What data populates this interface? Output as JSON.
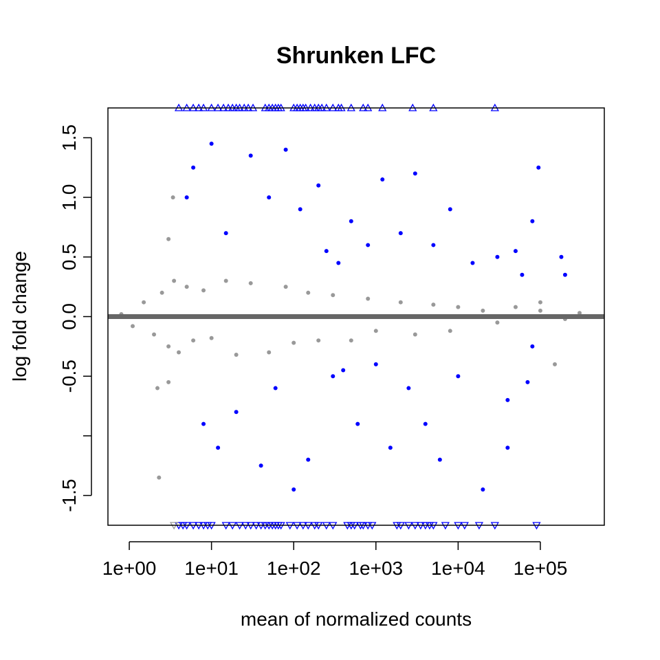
{
  "chart_data": {
    "type": "scatter",
    "title": "Shrunken LFC",
    "xlabel": "mean of normalized counts",
    "ylabel": "log fold change",
    "x_scale": "log10",
    "xlim": [
      0.55,
      600000
    ],
    "ylim": [
      -1.75,
      1.75
    ],
    "x_ticks": [
      1,
      10,
      100,
      1000,
      10000,
      100000
    ],
    "x_tick_labels": [
      "1e+00",
      "1e+01",
      "1e+02",
      "1e+03",
      "1e+04",
      "1e+05"
    ],
    "y_ticks": [
      -1.5,
      -1.0,
      -0.5,
      0.0,
      0.5,
      1.0,
      1.5
    ],
    "y_tick_labels": [
      "-1.5",
      "",
      "-0.5",
      "0.0",
      "0.5",
      "1.0",
      "1.5"
    ],
    "reference_line_y": 0,
    "grid": false,
    "legend": "none",
    "colors": {
      "significant": "#0000ff",
      "not_significant": "#999999",
      "reference_line": "#666666"
    },
    "series": [
      {
        "marker": "point",
        "color": "#999999",
        "points": [
          [
            0.8,
            0.02
          ],
          [
            1.1,
            -0.08
          ],
          [
            1.5,
            0.12
          ],
          [
            2.0,
            -0.15
          ],
          [
            2.5,
            0.2
          ],
          [
            3.0,
            -0.25
          ],
          [
            3.5,
            0.3
          ],
          [
            4.0,
            -0.3
          ],
          [
            5.0,
            0.25
          ],
          [
            6.0,
            -0.2
          ],
          [
            8.0,
            0.22
          ],
          [
            10.0,
            -0.18
          ],
          [
            15.0,
            0.3
          ],
          [
            20.0,
            -0.32
          ],
          [
            30.0,
            0.28
          ],
          [
            50.0,
            -0.3
          ],
          [
            80.0,
            0.25
          ],
          [
            100.0,
            -0.22
          ],
          [
            150.0,
            0.2
          ],
          [
            200.0,
            -0.2
          ],
          [
            300.0,
            0.18
          ],
          [
            500.0,
            -0.2
          ],
          [
            800.0,
            0.15
          ],
          [
            1000.0,
            -0.12
          ],
          [
            2000.0,
            0.12
          ],
          [
            3000.0,
            -0.15
          ],
          [
            5000.0,
            0.1
          ],
          [
            8000.0,
            -0.12
          ],
          [
            10000.0,
            0.08
          ],
          [
            20000.0,
            0.05
          ],
          [
            30000.0,
            -0.05
          ],
          [
            50000.0,
            0.08
          ],
          [
            100000.0,
            0.05
          ],
          [
            200000.0,
            -0.02
          ],
          [
            300000.0,
            0.03
          ],
          [
            2.2,
            -0.6
          ],
          [
            2.3,
            -1.35
          ],
          [
            3.0,
            0.65
          ],
          [
            3.4,
            1.0
          ],
          [
            3.0,
            -0.55
          ],
          [
            100000.0,
            0.12
          ],
          [
            150000.0,
            -0.4
          ]
        ]
      },
      {
        "marker": "point",
        "color": "#0000ff",
        "points": [
          [
            5.0,
            1.0
          ],
          [
            6.0,
            1.25
          ],
          [
            8.0,
            -0.9
          ],
          [
            10.0,
            1.45
          ],
          [
            12.0,
            -1.1
          ],
          [
            15.0,
            0.7
          ],
          [
            20.0,
            -0.8
          ],
          [
            30.0,
            1.35
          ],
          [
            40.0,
            -1.25
          ],
          [
            50.0,
            1.0
          ],
          [
            60.0,
            -0.6
          ],
          [
            80.0,
            1.4
          ],
          [
            100.0,
            -1.45
          ],
          [
            120.0,
            0.9
          ],
          [
            150.0,
            -1.2
          ],
          [
            200.0,
            1.1
          ],
          [
            250.0,
            0.55
          ],
          [
            300.0,
            -0.5
          ],
          [
            350.0,
            0.45
          ],
          [
            400.0,
            -0.45
          ],
          [
            500.0,
            0.8
          ],
          [
            600.0,
            -0.9
          ],
          [
            800.0,
            0.6
          ],
          [
            1000.0,
            -0.4
          ],
          [
            1200.0,
            1.15
          ],
          [
            1500.0,
            -1.1
          ],
          [
            2000.0,
            0.7
          ],
          [
            2500.0,
            -0.6
          ],
          [
            3000.0,
            1.2
          ],
          [
            4000.0,
            -0.9
          ],
          [
            5000.0,
            0.6
          ],
          [
            6000.0,
            -1.2
          ],
          [
            8000.0,
            0.9
          ],
          [
            10000.0,
            -0.5
          ],
          [
            15000.0,
            0.45
          ],
          [
            20000.0,
            -1.45
          ],
          [
            30000.0,
            0.5
          ],
          [
            40000.0,
            -0.7
          ],
          [
            60000.0,
            0.35
          ],
          [
            80000.0,
            0.8
          ],
          [
            95000.0,
            1.25
          ],
          [
            180000.0,
            0.5
          ],
          [
            200000.0,
            0.35
          ],
          [
            80000.0,
            -0.25
          ],
          [
            70000.0,
            -0.55
          ],
          [
            40000.0,
            -1.1
          ],
          [
            50000.0,
            0.55
          ]
        ]
      },
      {
        "name": "",
        "marker": "triangle-up",
        "color": "#0000ff",
        "y_clip": 1.75,
        "x_values": [
          4.0,
          5.0,
          6.0,
          7.0,
          8.0,
          10.0,
          12.0,
          14.0,
          16.0,
          18.0,
          20.0,
          22.0,
          25.0,
          28.0,
          32.0,
          45.0,
          50.0,
          55.0,
          60.0,
          65.0,
          70.0,
          100.0,
          110.0,
          120.0,
          130.0,
          140.0,
          160.0,
          180.0,
          200.0,
          220.0,
          250.0,
          300.0,
          350.0,
          380.0,
          500.0,
          700.0,
          800.0,
          1200.0,
          2800.0,
          5000.0,
          28000.0
        ]
      },
      {
        "name": "",
        "marker": "triangle-down",
        "color": "#0000ff",
        "y_clip": -1.75,
        "x_values": [
          4.0,
          4.5,
          5.0,
          6.0,
          7.0,
          8.0,
          9.0,
          10.0,
          15.0,
          18.0,
          22.0,
          26.0,
          30.0,
          35.0,
          40.0,
          45.0,
          50.0,
          55.0,
          60.0,
          65.0,
          70.0,
          90.0,
          110.0,
          130.0,
          150.0,
          180.0,
          200.0,
          250.0,
          300.0,
          450.0,
          500.0,
          550.0,
          650.0,
          700.0,
          800.0,
          900.0,
          1800.0,
          2000.0,
          2500.0,
          3000.0,
          3500.0,
          4000.0,
          4500.0,
          5000.0,
          7000.0,
          10000.0,
          12000.0,
          18000.0,
          28000.0,
          90000.0
        ]
      },
      {
        "name": "",
        "marker": "triangle-down",
        "color": "#999999",
        "y_clip": -1.75,
        "x_values": [
          3.5
        ]
      }
    ]
  }
}
